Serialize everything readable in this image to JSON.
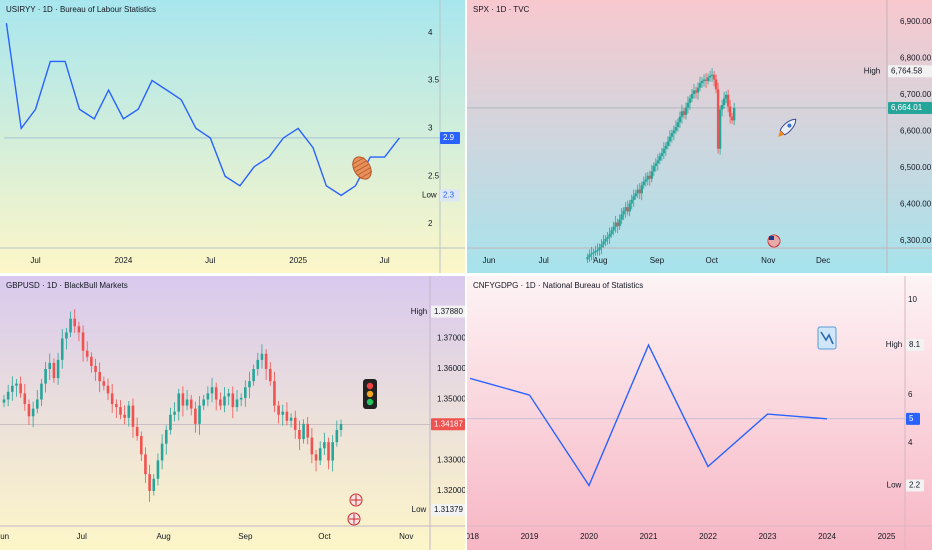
{
  "panels": [
    {
      "title": "USIRYY · 1D · Bureau of Labour Statistics",
      "chart_data": {
        "type": "line",
        "x": [
          "2023-05",
          "2023-06",
          "2023-07",
          "2023-08",
          "2023-09",
          "2023-10",
          "2023-11",
          "2023-12",
          "2024-01",
          "2024-02",
          "2024-03",
          "2024-04",
          "2024-05",
          "2024-06",
          "2024-07",
          "2024-08",
          "2024-09",
          "2024-10",
          "2024-11",
          "2024-12",
          "2025-01",
          "2025-02",
          "2025-03",
          "2025-04",
          "2025-05",
          "2025-06",
          "2025-07",
          "2025-08"
        ],
        "y": [
          4.1,
          3.0,
          3.2,
          3.7,
          3.7,
          3.2,
          3.1,
          3.4,
          3.1,
          3.2,
          3.5,
          3.4,
          3.3,
          3.0,
          2.9,
          2.5,
          2.4,
          2.6,
          2.7,
          2.9,
          3.0,
          2.8,
          2.4,
          2.3,
          2.4,
          2.7,
          2.7,
          2.9
        ],
        "ylim": [
          1.75,
          4.3
        ],
        "y_ticks": [
          "2",
          "2.5",
          "3",
          "3.5",
          "4"
        ],
        "x_ticks": [
          {
            "label": "Jul",
            "at": "2023-07"
          },
          {
            "label": "2024",
            "at": "2024-01"
          },
          {
            "label": "Jul",
            "at": "2024-07"
          },
          {
            "label": "2025",
            "at": "2025-01"
          },
          {
            "label": "Jul",
            "at": "2025-07"
          }
        ],
        "last_value": "2.9",
        "low_label": "Low",
        "low_value": "2.3",
        "line_color": "#2962ff",
        "background": [
          "#a8e6ee",
          "#fdf6c8"
        ]
      }
    },
    {
      "title": "SPX · 1D · TVC",
      "chart_data": {
        "type": "candlestick",
        "x_range": [
          "2025-05-20",
          "2026-01-05"
        ],
        "x_ticks": [
          {
            "label": "Jun",
            "at": "2025-06-01"
          },
          {
            "label": "Jul",
            "at": "2025-07-01"
          },
          {
            "label": "Aug",
            "at": "2025-08-01"
          },
          {
            "label": "Sep",
            "at": "2025-09-01"
          },
          {
            "label": "Oct",
            "at": "2025-10-01"
          },
          {
            "label": "Nov",
            "at": "2025-11-01"
          },
          {
            "label": "Dec",
            "at": "2025-12-01"
          }
        ],
        "closes": [
          6255,
          6262,
          6265,
          6268,
          6272,
          6275,
          6282,
          6290,
          6298,
          6305,
          6310,
          6318,
          6328,
          6338,
          6350,
          6340,
          6358,
          6372,
          6382,
          6392,
          6380,
          6402,
          6412,
          6422,
          6430,
          6440,
          6430,
          6452,
          6462,
          6468,
          6478,
          6470,
          6490,
          6505,
          6512,
          6520,
          6532,
          6540,
          6552,
          6560,
          6572,
          6585,
          6595,
          6602,
          6612,
          6625,
          6640,
          6655,
          6645,
          6665,
          6678,
          6690,
          6702,
          6712,
          6706,
          6720,
          6732,
          6738,
          6742,
          6738,
          6748,
          6752,
          6755,
          6742,
          6715,
          6552,
          6660,
          6672,
          6690,
          6700,
          6668,
          6640,
          6630,
          6664
        ],
        "ylim": [
          6280,
          6960
        ],
        "y_ticks": [
          "6,300.00",
          "6,400.00",
          "6,500.00",
          "6,600.00",
          "6,700.00",
          "6,800.00",
          "6,900.00"
        ],
        "last_value": "6,664.01",
        "high_label": "High",
        "high_value": "6,764.58",
        "up_color": "#26a69a",
        "down_color": "#ef5350",
        "background": [
          "#f9c8cf",
          "#a6e3ec"
        ]
      }
    },
    {
      "title": "GBPUSD · 1D · BlackBull Markets",
      "chart_data": {
        "type": "candlestick",
        "x_range": [
          "2025-06-01",
          "2025-11-10"
        ],
        "x_ticks": [
          {
            "label": "Jun",
            "at": "2025-06-01"
          },
          {
            "label": "Jul",
            "at": "2025-07-01"
          },
          {
            "label": "Aug",
            "at": "2025-08-01"
          },
          {
            "label": "Sep",
            "at": "2025-09-01"
          },
          {
            "label": "Oct",
            "at": "2025-10-01"
          },
          {
            "label": "Nov",
            "at": "2025-11-01"
          }
        ],
        "closes": [
          1.35,
          1.3525,
          1.3545,
          1.3552,
          1.352,
          1.3485,
          1.3445,
          1.347,
          1.35,
          1.3552,
          1.36,
          1.362,
          1.357,
          1.363,
          1.37,
          1.372,
          1.3765,
          1.374,
          1.372,
          1.366,
          1.364,
          1.361,
          1.359,
          1.356,
          1.3545,
          1.352,
          1.3485,
          1.3475,
          1.345,
          1.344,
          1.348,
          1.341,
          1.338,
          1.332,
          1.3255,
          1.32,
          1.324,
          1.33,
          1.3355,
          1.34,
          1.345,
          1.346,
          1.352,
          1.348,
          1.35,
          1.347,
          1.342,
          1.348,
          1.35,
          1.352,
          1.354,
          1.35,
          1.348,
          1.351,
          1.352,
          1.3475,
          1.35,
          1.3505,
          1.354,
          1.356,
          1.36,
          1.363,
          1.365,
          1.36,
          1.356,
          1.348,
          1.345,
          1.346,
          1.343,
          1.344,
          1.34,
          1.337,
          1.342,
          1.3375,
          1.332,
          1.33,
          1.334,
          1.336,
          1.33,
          1.336,
          1.34,
          1.3419
        ],
        "ylim": [
          1.3085,
          1.3905
        ],
        "y_ticks": [
          "1.32000",
          "1.33000",
          "1.35000",
          "1.36000",
          "1.37000"
        ],
        "last_value": "1.34187",
        "high_label": "High",
        "high_value": "1.37880",
        "low_label": "Low",
        "low_value": "1.31379",
        "up_color": "#26a69a",
        "down_color": "#ef5350",
        "background": [
          "#d9c9ee",
          "#fdf6c8"
        ]
      }
    },
    {
      "title": "CNFYGDPG · 1D · National Bureau of Statistics",
      "chart_data": {
        "type": "line",
        "x": [
          2018,
          2019,
          2020,
          2021,
          2022,
          2023,
          2024
        ],
        "y": [
          6.7,
          6.0,
          2.2,
          8.1,
          3.0,
          5.2,
          5.0
        ],
        "ylim": [
          0.5,
          11
        ],
        "y_ticks": [
          "4",
          "6",
          "10"
        ],
        "x_ticks": [
          "2018",
          "2019",
          "2020",
          "2021",
          "2022",
          "2023",
          "2024",
          "2025"
        ],
        "last_value": "5",
        "high_label": "High",
        "high_value": "8.1",
        "low_label": "Low",
        "low_value": "2.2",
        "line_color": "#2962ff",
        "background": [
          "#fdf3f5",
          "#f7b6c4"
        ]
      }
    }
  ]
}
